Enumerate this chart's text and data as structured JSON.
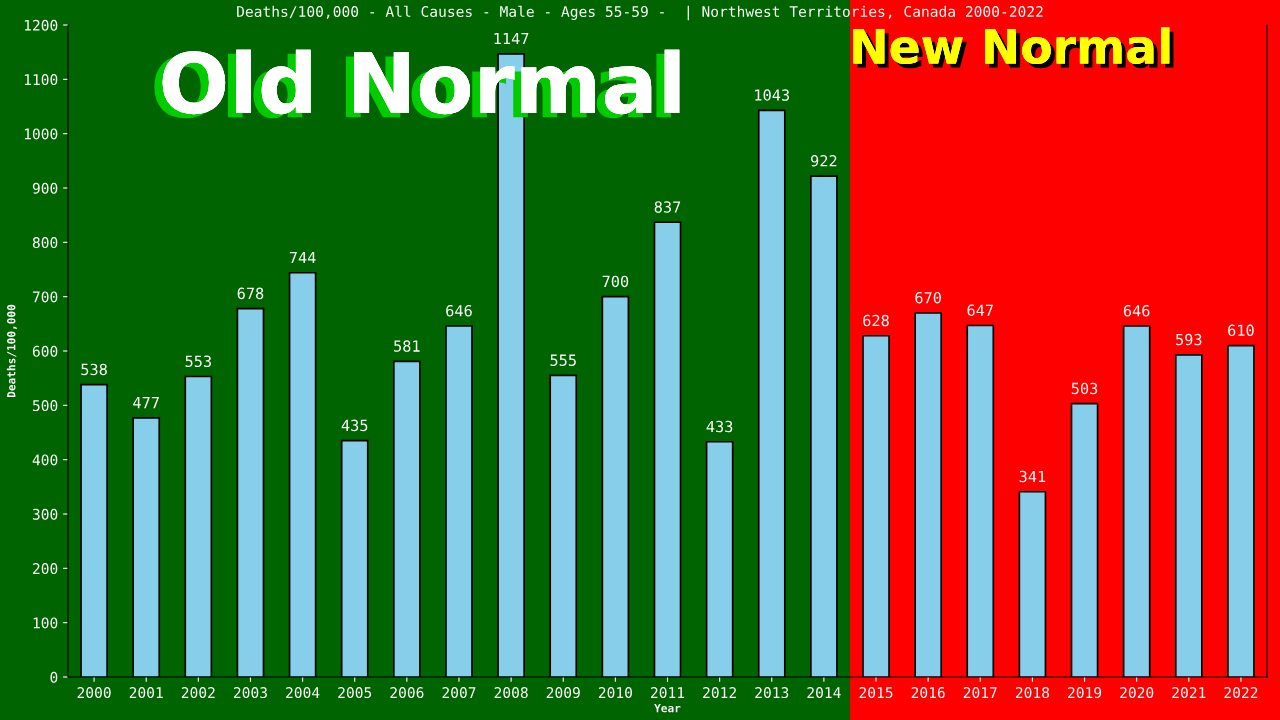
{
  "chart_data": {
    "type": "bar",
    "title": "Deaths/100,000 - All Causes - Male - Ages 55-59 -  | Northwest Territories, Canada 2000-2022",
    "xlabel": "Year",
    "ylabel": "Deaths/100,000",
    "categories": [
      "2000",
      "2001",
      "2002",
      "2003",
      "2004",
      "2005",
      "2006",
      "2007",
      "2008",
      "2009",
      "2010",
      "2011",
      "2012",
      "2013",
      "2014",
      "2015",
      "2016",
      "2017",
      "2018",
      "2019",
      "2020",
      "2021",
      "2022"
    ],
    "values": [
      538,
      477,
      553,
      678,
      744,
      435,
      581,
      646,
      1147,
      555,
      700,
      837,
      433,
      1043,
      922,
      628,
      670,
      647,
      341,
      503,
      646,
      593,
      610
    ],
    "color": "#87ceeb",
    "ylim": [
      0,
      1200
    ],
    "yticks": [
      0,
      100,
      200,
      300,
      400,
      500,
      600,
      700,
      800,
      900,
      1000,
      1100,
      1200
    ],
    "data_labels": true,
    "grid": false,
    "legend": false,
    "bands": [
      {
        "axis": "x",
        "from": "2000",
        "to": "2014",
        "label": "Old Normal",
        "color": "#006400"
      },
      {
        "axis": "x",
        "from": "2015",
        "to": "2022",
        "label": "New Normal",
        "color": "#ff0000"
      }
    ]
  }
}
